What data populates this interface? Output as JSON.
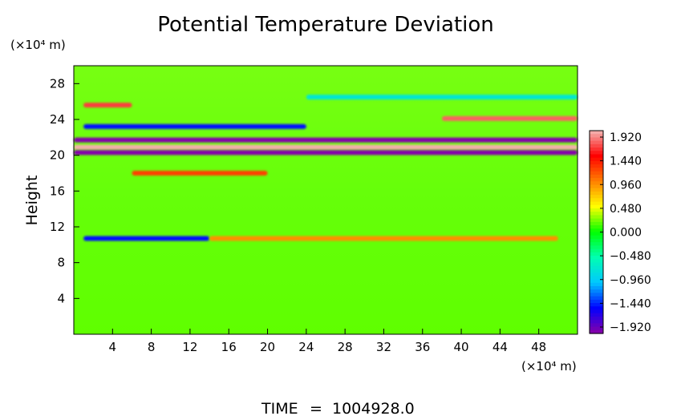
{
  "chart_data": {
    "type": "heatmap",
    "title": "Potential Temperature Deviation",
    "ylabel": "Height",
    "y_unit": "(×10⁴ m)",
    "x_unit": "(×10⁴ m)",
    "xlim": [
      0,
      52
    ],
    "ylim": [
      0,
      30
    ],
    "x_ticks": [
      4,
      8,
      12,
      16,
      20,
      24,
      28,
      32,
      36,
      40,
      44,
      48
    ],
    "y_ticks": [
      4,
      8,
      12,
      16,
      20,
      24,
      28
    ],
    "colorbar": {
      "ticks": [
        "1.920",
        "1.440",
        "0.960",
        "0.480",
        "0.000",
        "−0.480",
        "−0.960",
        "−1.440",
        "−1.920"
      ],
      "min": -1.92,
      "max": 1.92,
      "colors": [
        "#f4b6b4",
        "#ff0000",
        "#ff7f00",
        "#ffff00",
        "#00ff00",
        "#00ffb0",
        "#00c8ff",
        "#0000ff",
        "#8a00a8"
      ]
    },
    "background_value": 0.24,
    "features": [
      {
        "x": [
          0,
          52
        ],
        "y": 21.7,
        "value": -1.9
      },
      {
        "x": [
          0,
          52
        ],
        "y": 20.9,
        "value": 1.9
      },
      {
        "x": [
          0,
          52
        ],
        "y": 20.3,
        "value": -1.9
      },
      {
        "x": [
          1,
          24
        ],
        "y": 23.2,
        "value": -1.4
      },
      {
        "x": [
          1,
          6
        ],
        "y": 25.6,
        "value": 1.6
      },
      {
        "x": [
          38,
          52
        ],
        "y": 24.1,
        "value": 1.7
      },
      {
        "x": [
          6,
          20
        ],
        "y": 18.0,
        "value": 1.2
      },
      {
        "x": [
          1,
          14
        ],
        "y": 10.7,
        "value": -1.4
      },
      {
        "x": [
          14,
          50
        ],
        "y": 10.7,
        "value": 0.9
      },
      {
        "x": [
          24,
          52
        ],
        "y": 26.5,
        "value": -0.7
      }
    ]
  },
  "footer": {
    "label": "TIME",
    "value": "1004928.0"
  }
}
